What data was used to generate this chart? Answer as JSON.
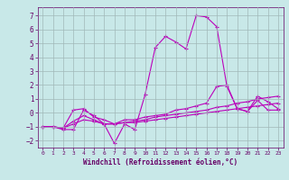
{
  "xlabel": "Windchill (Refroidissement éolien,°C)",
  "background_color": "#c8e8e8",
  "grid_color": "#a0b8b8",
  "line_color": "#bb00bb",
  "x_values": [
    0,
    1,
    2,
    3,
    4,
    5,
    6,
    7,
    8,
    9,
    10,
    11,
    12,
    13,
    14,
    15,
    16,
    17,
    18,
    19,
    20,
    21,
    22,
    23
  ],
  "line1": [
    -1.0,
    -1.0,
    -1.2,
    -1.2,
    0.2,
    -0.2,
    -0.8,
    -2.2,
    -0.8,
    -1.2,
    1.3,
    4.7,
    5.5,
    5.1,
    4.6,
    7.0,
    6.9,
    6.2,
    1.9,
    0.3,
    0.1,
    0.9,
    0.2,
    0.2
  ],
  "line2": [
    -1.0,
    -1.0,
    -1.1,
    0.2,
    0.3,
    -0.3,
    -0.5,
    -0.8,
    -0.5,
    -0.5,
    -0.3,
    -0.2,
    -0.1,
    0.2,
    0.3,
    0.5,
    0.7,
    1.9,
    2.0,
    0.3,
    0.1,
    1.2,
    0.8,
    0.3
  ],
  "line3": [
    -1.0,
    -1.0,
    -1.1,
    -0.6,
    -0.2,
    -0.5,
    -0.8,
    -0.8,
    -0.7,
    -0.6,
    -0.5,
    -0.3,
    -0.2,
    -0.1,
    0.0,
    0.1,
    0.2,
    0.4,
    0.5,
    0.7,
    0.8,
    1.0,
    1.1,
    1.2
  ],
  "line4": [
    -1.0,
    -1.0,
    -1.1,
    -0.8,
    -0.5,
    -0.6,
    -0.8,
    -0.8,
    -0.7,
    -0.7,
    -0.6,
    -0.5,
    -0.4,
    -0.3,
    -0.2,
    -0.1,
    0.0,
    0.1,
    0.2,
    0.3,
    0.4,
    0.5,
    0.6,
    0.7
  ],
  "ylim": [
    -2.5,
    7.6
  ],
  "xlim": [
    -0.5,
    23.5
  ],
  "yticks": [
    -2,
    -1,
    0,
    1,
    2,
    3,
    4,
    5,
    6,
    7
  ],
  "xticks": [
    0,
    1,
    2,
    3,
    4,
    5,
    6,
    7,
    8,
    9,
    10,
    11,
    12,
    13,
    14,
    15,
    16,
    17,
    18,
    19,
    20,
    21,
    22,
    23
  ]
}
